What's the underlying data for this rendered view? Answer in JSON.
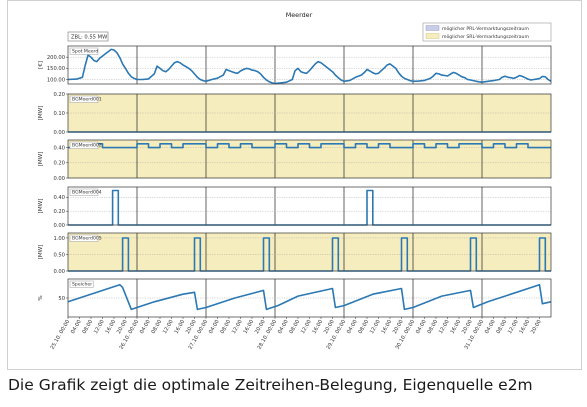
{
  "caption": "Die Grafik zeigt die optimale Zeitreihen-Belegung, Eigenquelle e2m",
  "chart_data": {
    "type": "line",
    "title": "Meerder",
    "zbl_label": "ZBL: 0.55 MW",
    "legend": [
      {
        "label": "möglicher PRL-Vermarktungszeitraum",
        "color": "#c9cde6"
      },
      {
        "label": "möglicher SRL-Vermarktungszeitraum",
        "color": "#f6edbf"
      }
    ],
    "legend_position": "top-right",
    "x_tick_labels": [
      "25.10. 00:00",
      "04:00",
      "08:00",
      "12:00",
      "16:00",
      "20:00",
      "26.10. 00:00",
      "04:00",
      "08:00",
      "12:00",
      "16:00",
      "20:00",
      "27.10. 00:00",
      "04:00",
      "08:00",
      "12:00",
      "16:00",
      "20:00",
      "28.10. 00:00",
      "04:00",
      "08:00",
      "12:00",
      "16:00",
      "20:00",
      "29.10. 00:00",
      "04:00",
      "08:00",
      "12:00",
      "16:00",
      "20:00",
      "30.10. 00:00",
      "04:00",
      "08:00",
      "12:00",
      "16:00",
      "20:00",
      "31.10. 00:00",
      "04:00",
      "08:00",
      "12:00",
      "16:00",
      "20:00"
    ],
    "x_range_hours": [
      0,
      168
    ],
    "line_color": "#2b78b3",
    "panels": [
      {
        "name": "Spot Meerd",
        "ylabel": "[€]",
        "ylim": [
          80,
          250
        ],
        "yticks": [
          "100.00",
          "150.00",
          "200.00"
        ],
        "ytick_values": [
          100,
          150,
          200
        ],
        "shade": "none",
        "series": {
          "x": [
            0,
            3,
            5,
            6,
            7,
            8,
            9,
            10,
            11,
            12,
            13,
            14,
            15,
            16,
            17,
            18,
            19,
            20,
            21,
            22,
            23,
            24,
            26,
            28,
            30,
            31,
            32,
            33,
            34,
            35,
            36,
            37,
            38,
            39,
            40,
            41,
            42,
            43,
            44,
            45,
            46,
            47,
            48,
            50,
            52,
            54,
            55,
            56,
            57,
            58,
            59,
            60,
            61,
            62,
            63,
            64,
            65,
            66,
            67,
            68,
            69,
            70,
            71,
            72,
            74,
            76,
            78,
            79,
            80,
            81,
            82,
            83,
            84,
            85,
            86,
            87,
            88,
            89,
            90,
            91,
            92,
            93,
            94,
            95,
            96,
            98,
            100,
            102,
            103,
            104,
            105,
            106,
            107,
            108,
            109,
            110,
            111,
            112,
            113,
            114,
            115,
            116,
            117,
            118,
            119,
            120,
            122,
            124,
            126,
            127,
            128,
            129,
            130,
            131,
            132,
            133,
            134,
            135,
            136,
            137,
            138,
            139,
            140,
            141,
            142,
            143,
            144,
            146,
            148,
            150,
            151,
            152,
            153,
            154,
            155,
            156,
            157,
            158,
            159,
            160,
            161,
            162,
            163,
            164,
            165,
            166,
            167,
            168
          ],
          "y": [
            100,
            102,
            110,
            165,
            210,
            200,
            185,
            180,
            195,
            205,
            215,
            225,
            235,
            232,
            220,
            198,
            170,
            150,
            128,
            112,
            105,
            100,
            100,
            103,
            125,
            160,
            150,
            140,
            135,
            145,
            160,
            175,
            180,
            175,
            165,
            158,
            150,
            140,
            125,
            110,
            100,
            95,
            92,
            100,
            106,
            120,
            145,
            140,
            135,
            130,
            128,
            138,
            145,
            150,
            148,
            142,
            140,
            135,
            125,
            110,
            98,
            90,
            85,
            82,
            85,
            88,
            100,
            140,
            150,
            135,
            130,
            128,
            140,
            155,
            170,
            180,
            175,
            165,
            155,
            145,
            135,
            120,
            108,
            98,
            92,
            96,
            110,
            120,
            130,
            145,
            138,
            130,
            125,
            128,
            140,
            152,
            165,
            170,
            160,
            150,
            130,
            115,
            105,
            100,
            95,
            92,
            93,
            96,
            105,
            115,
            128,
            125,
            120,
            118,
            116,
            124,
            132,
            128,
            120,
            112,
            108,
            100,
            98,
            95,
            92,
            90,
            88,
            92,
            95,
            100,
            110,
            115,
            110,
            108,
            105,
            110,
            118,
            114,
            108,
            102,
            98,
            100,
            102,
            104,
            114,
            112,
            100,
            92
          ]
        }
      },
      {
        "name": "BGMoerd001",
        "ylabel": "[MW]",
        "ylim": [
          0,
          0.2
        ],
        "yticks": [
          "0.00",
          "0.10",
          "0.20"
        ],
        "ytick_values": [
          0,
          0.1,
          0.2
        ],
        "shade": "srl",
        "series": {
          "x": [
            0,
            168
          ],
          "y": [
            0,
            0
          ]
        }
      },
      {
        "name": "BGMoerd002",
        "ylabel": "[MW]",
        "ylim": [
          0,
          0.5
        ],
        "yticks": [
          "0.00",
          "0.20",
          "0.40"
        ],
        "ytick_values": [
          0,
          0.2,
          0.4
        ],
        "shade": "srl",
        "series": {
          "x": [
            0,
            8,
            8,
            12,
            12,
            24,
            24,
            28,
            28,
            32,
            32,
            36,
            36,
            40,
            40,
            48,
            48,
            52,
            52,
            56,
            56,
            60,
            60,
            64,
            64,
            72,
            72,
            76,
            76,
            80,
            80,
            84,
            84,
            88,
            88,
            96,
            96,
            100,
            100,
            104,
            104,
            108,
            108,
            112,
            112,
            120,
            120,
            124,
            124,
            128,
            128,
            132,
            132,
            136,
            136,
            144,
            144,
            148,
            148,
            152,
            152,
            156,
            156,
            160,
            160,
            168
          ],
          "y": [
            0.4,
            0.4,
            0.45,
            0.45,
            0.4,
            0.4,
            0.45,
            0.45,
            0.4,
            0.4,
            0.45,
            0.45,
            0.4,
            0.4,
            0.45,
            0.45,
            0.4,
            0.4,
            0.45,
            0.45,
            0.4,
            0.4,
            0.45,
            0.45,
            0.4,
            0.4,
            0.45,
            0.45,
            0.4,
            0.4,
            0.45,
            0.45,
            0.4,
            0.4,
            0.45,
            0.45,
            0.4,
            0.4,
            0.45,
            0.45,
            0.4,
            0.4,
            0.45,
            0.45,
            0.4,
            0.4,
            0.45,
            0.45,
            0.4,
            0.4,
            0.45,
            0.45,
            0.4,
            0.4,
            0.45,
            0.45,
            0.4,
            0.4,
            0.45,
            0.45,
            0.4,
            0.4,
            0.45,
            0.45,
            0.4,
            0.4
          ]
        }
      },
      {
        "name": "BGMoerd004",
        "ylabel": "[MW]",
        "ylim": [
          0,
          0.55
        ],
        "yticks": [
          "0.00",
          "0.20",
          "0.40"
        ],
        "ytick_values": [
          0,
          0.2,
          0.4
        ],
        "shade": "none",
        "series": {
          "x": [
            0,
            15.5,
            15.5,
            17.5,
            17.5,
            104,
            104,
            106,
            106,
            168
          ],
          "y": [
            0,
            0,
            0.5,
            0.5,
            0,
            0,
            0.5,
            0.5,
            0,
            0
          ]
        }
      },
      {
        "name": "BGMoerd005",
        "ylabel": "[MW]",
        "ylim": [
          0,
          1.15
        ],
        "yticks": [
          "0.00",
          "0.50",
          "1.00"
        ],
        "ytick_values": [
          0,
          0.5,
          1.0
        ],
        "shade": "srl",
        "series": {
          "x": [
            0,
            19,
            19,
            21,
            21,
            44,
            44,
            46,
            46,
            68,
            68,
            70,
            70,
            92,
            92,
            94,
            94,
            116,
            116,
            118,
            118,
            140,
            140,
            142,
            142,
            164,
            164,
            166,
            166,
            168
          ],
          "y": [
            0,
            0,
            1,
            1,
            0,
            0,
            1,
            1,
            0,
            0,
            1,
            1,
            0,
            0,
            1,
            1,
            0,
            0,
            1,
            1,
            0,
            0,
            1,
            1,
            0,
            0,
            1,
            1,
            0,
            0
          ]
        }
      },
      {
        "name": "Speicher",
        "ylabel": "%",
        "ylim": [
          0,
          100
        ],
        "yticks": [
          "50"
        ],
        "ytick_values": [
          50
        ],
        "shade": "none",
        "series": {
          "x": [
            0,
            18,
            19,
            22,
            24,
            30,
            40,
            44,
            45,
            48,
            58,
            68,
            69,
            73,
            80,
            92,
            93,
            96,
            106,
            116,
            117,
            120,
            130,
            140,
            141,
            146,
            164,
            165,
            168
          ],
          "y": [
            40,
            85,
            78,
            20,
            25,
            40,
            60,
            65,
            20,
            25,
            50,
            70,
            20,
            30,
            55,
            75,
            25,
            30,
            60,
            75,
            20,
            25,
            55,
            70,
            25,
            40,
            85,
            35,
            40
          ]
        }
      }
    ]
  }
}
